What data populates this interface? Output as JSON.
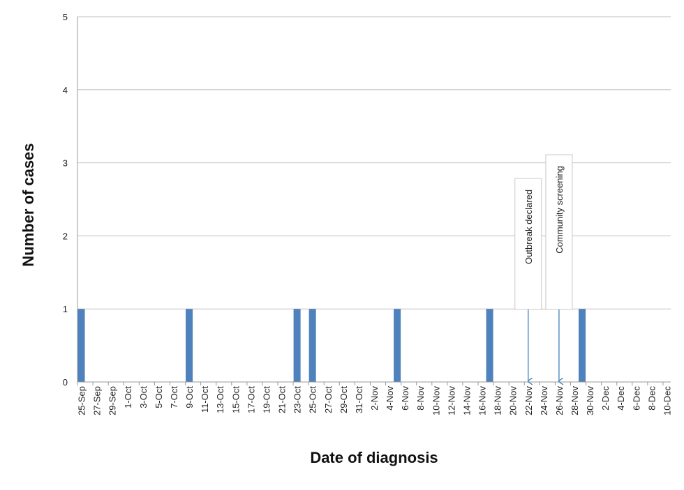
{
  "chart_data": {
    "type": "bar",
    "title": "",
    "xlabel": "Date of diagnosis",
    "ylabel": "Number of cases",
    "ylim": [
      0,
      5
    ],
    "yticks": [
      0,
      1,
      2,
      3,
      4,
      5
    ],
    "grid": true,
    "bar_color": "#4f81bd",
    "arrow_color": "#2e75b6",
    "start_date": "25-Sep",
    "tick_labels": [
      "25-Sep",
      "27-Sep",
      "29-Sep",
      "1-Oct",
      "3-Oct",
      "5-Oct",
      "7-Oct",
      "9-Oct",
      "11-Oct",
      "13-Oct",
      "15-Oct",
      "17-Oct",
      "19-Oct",
      "21-Oct",
      "23-Oct",
      "25-Oct",
      "27-Oct",
      "29-Oct",
      "31-Oct",
      "2-Nov",
      "4-Nov",
      "6-Nov",
      "8-Nov",
      "10-Nov",
      "12-Nov",
      "14-Nov",
      "16-Nov",
      "18-Nov",
      "20-Nov",
      "22-Nov",
      "24-Nov",
      "26-Nov",
      "28-Nov",
      "30-Nov",
      "2-Dec",
      "4-Dec",
      "6-Dec",
      "8-Dec",
      "10-Dec"
    ],
    "points": [
      {
        "date": "25-Sep",
        "value": 1
      },
      {
        "date": "9-Oct",
        "value": 1
      },
      {
        "date": "23-Oct",
        "value": 1
      },
      {
        "date": "25-Oct",
        "value": 1
      },
      {
        "date": "5-Nov",
        "value": 1
      },
      {
        "date": "17-Nov",
        "value": 1
      },
      {
        "date": "29-Nov",
        "value": 1
      }
    ],
    "annotations": [
      {
        "label": "Outbreak declared",
        "date": "22-Nov"
      },
      {
        "label": "Community screening",
        "date": "26-Nov"
      }
    ]
  }
}
